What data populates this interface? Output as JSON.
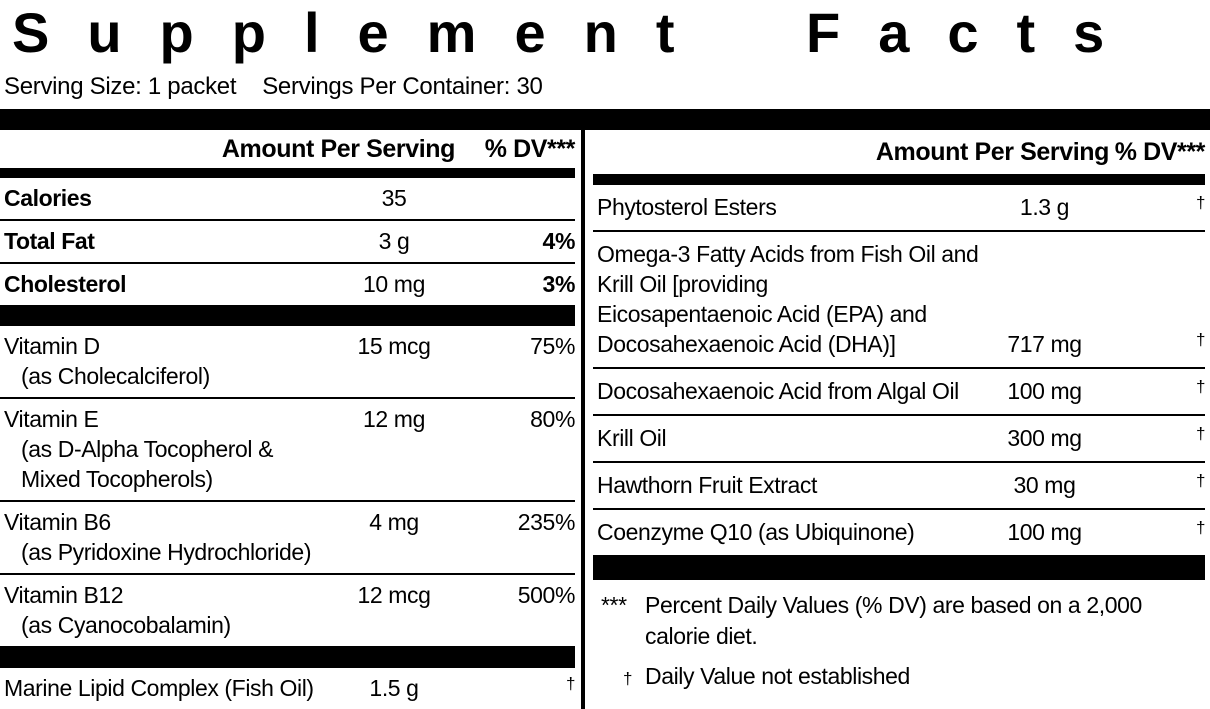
{
  "title": "Supplement Facts",
  "serving": {
    "size": "Serving Size: 1 packet",
    "per_container": "Servings Per Container: 30"
  },
  "left": {
    "header_amount": "Amount Per Serving",
    "header_dv": "% DV***",
    "rows": {
      "calories": {
        "name": "Calories",
        "amount": "35",
        "dv": ""
      },
      "total_fat": {
        "name": "Total Fat",
        "amount": "3 g",
        "dv": "4%"
      },
      "cholesterol": {
        "name": "Cholesterol",
        "amount": "10 mg",
        "dv": "3%"
      },
      "vitamin_d": {
        "name": "Vitamin D",
        "sub": "(as Cholecalciferol)",
        "amount": "15 mcg",
        "dv": "75%"
      },
      "vitamin_e": {
        "name": "Vitamin E",
        "sub1": "(as D-Alpha Tocopherol &",
        "sub2": "Mixed Tocopherols)",
        "amount": "12 mg",
        "dv": "80%"
      },
      "vitamin_b6": {
        "name": "Vitamin B6",
        "sub": "(as Pyridoxine Hydrochloride)",
        "amount": "4 mg",
        "dv": "235%"
      },
      "vitamin_b12": {
        "name": "Vitamin B12",
        "sub": "(as Cyanocobalamin)",
        "amount": "12 mcg",
        "dv": "500%"
      },
      "marine_lipid": {
        "name": "Marine Lipid Complex (Fish Oil)",
        "amount": "1.5 g",
        "dv": "†"
      }
    }
  },
  "right": {
    "header_amount": "Amount Per Serving",
    "header_dv": "% DV***",
    "rows": {
      "phytosterol": {
        "name": "Phytosterol Esters",
        "amount": "1.3 g",
        "dv": "†"
      },
      "omega3": {
        "line1": "Omega-3 Fatty Acids from Fish Oil and",
        "line2": "Krill Oil [providing",
        "line3": "Eicosapentaenoic Acid (EPA) and",
        "line4": "Docosahexaenoic Acid (DHA)]",
        "amount": "717 mg",
        "dv": "†"
      },
      "dha_algal": {
        "name": "Docosahexaenoic Acid from Algal Oil",
        "amount": "100 mg",
        "dv": "†"
      },
      "krill_oil": {
        "name": "Krill Oil",
        "amount": "300 mg",
        "dv": "†"
      },
      "hawthorn": {
        "name": "Hawthorn Fruit Extract",
        "amount": "30 mg",
        "dv": "†"
      },
      "coq10": {
        "name": "Coenzyme Q10 (as Ubiquinone)",
        "amount": "100 mg",
        "dv": "†"
      }
    },
    "footnotes": {
      "dv_marker": "***",
      "dv_text": "Percent Daily Values (% DV) are based on a 2,000 calorie diet.",
      "dagger_marker": "†",
      "dagger_text": "Daily Value not established"
    }
  },
  "colors": {
    "ink": "#000000",
    "background": "#ffffff"
  }
}
